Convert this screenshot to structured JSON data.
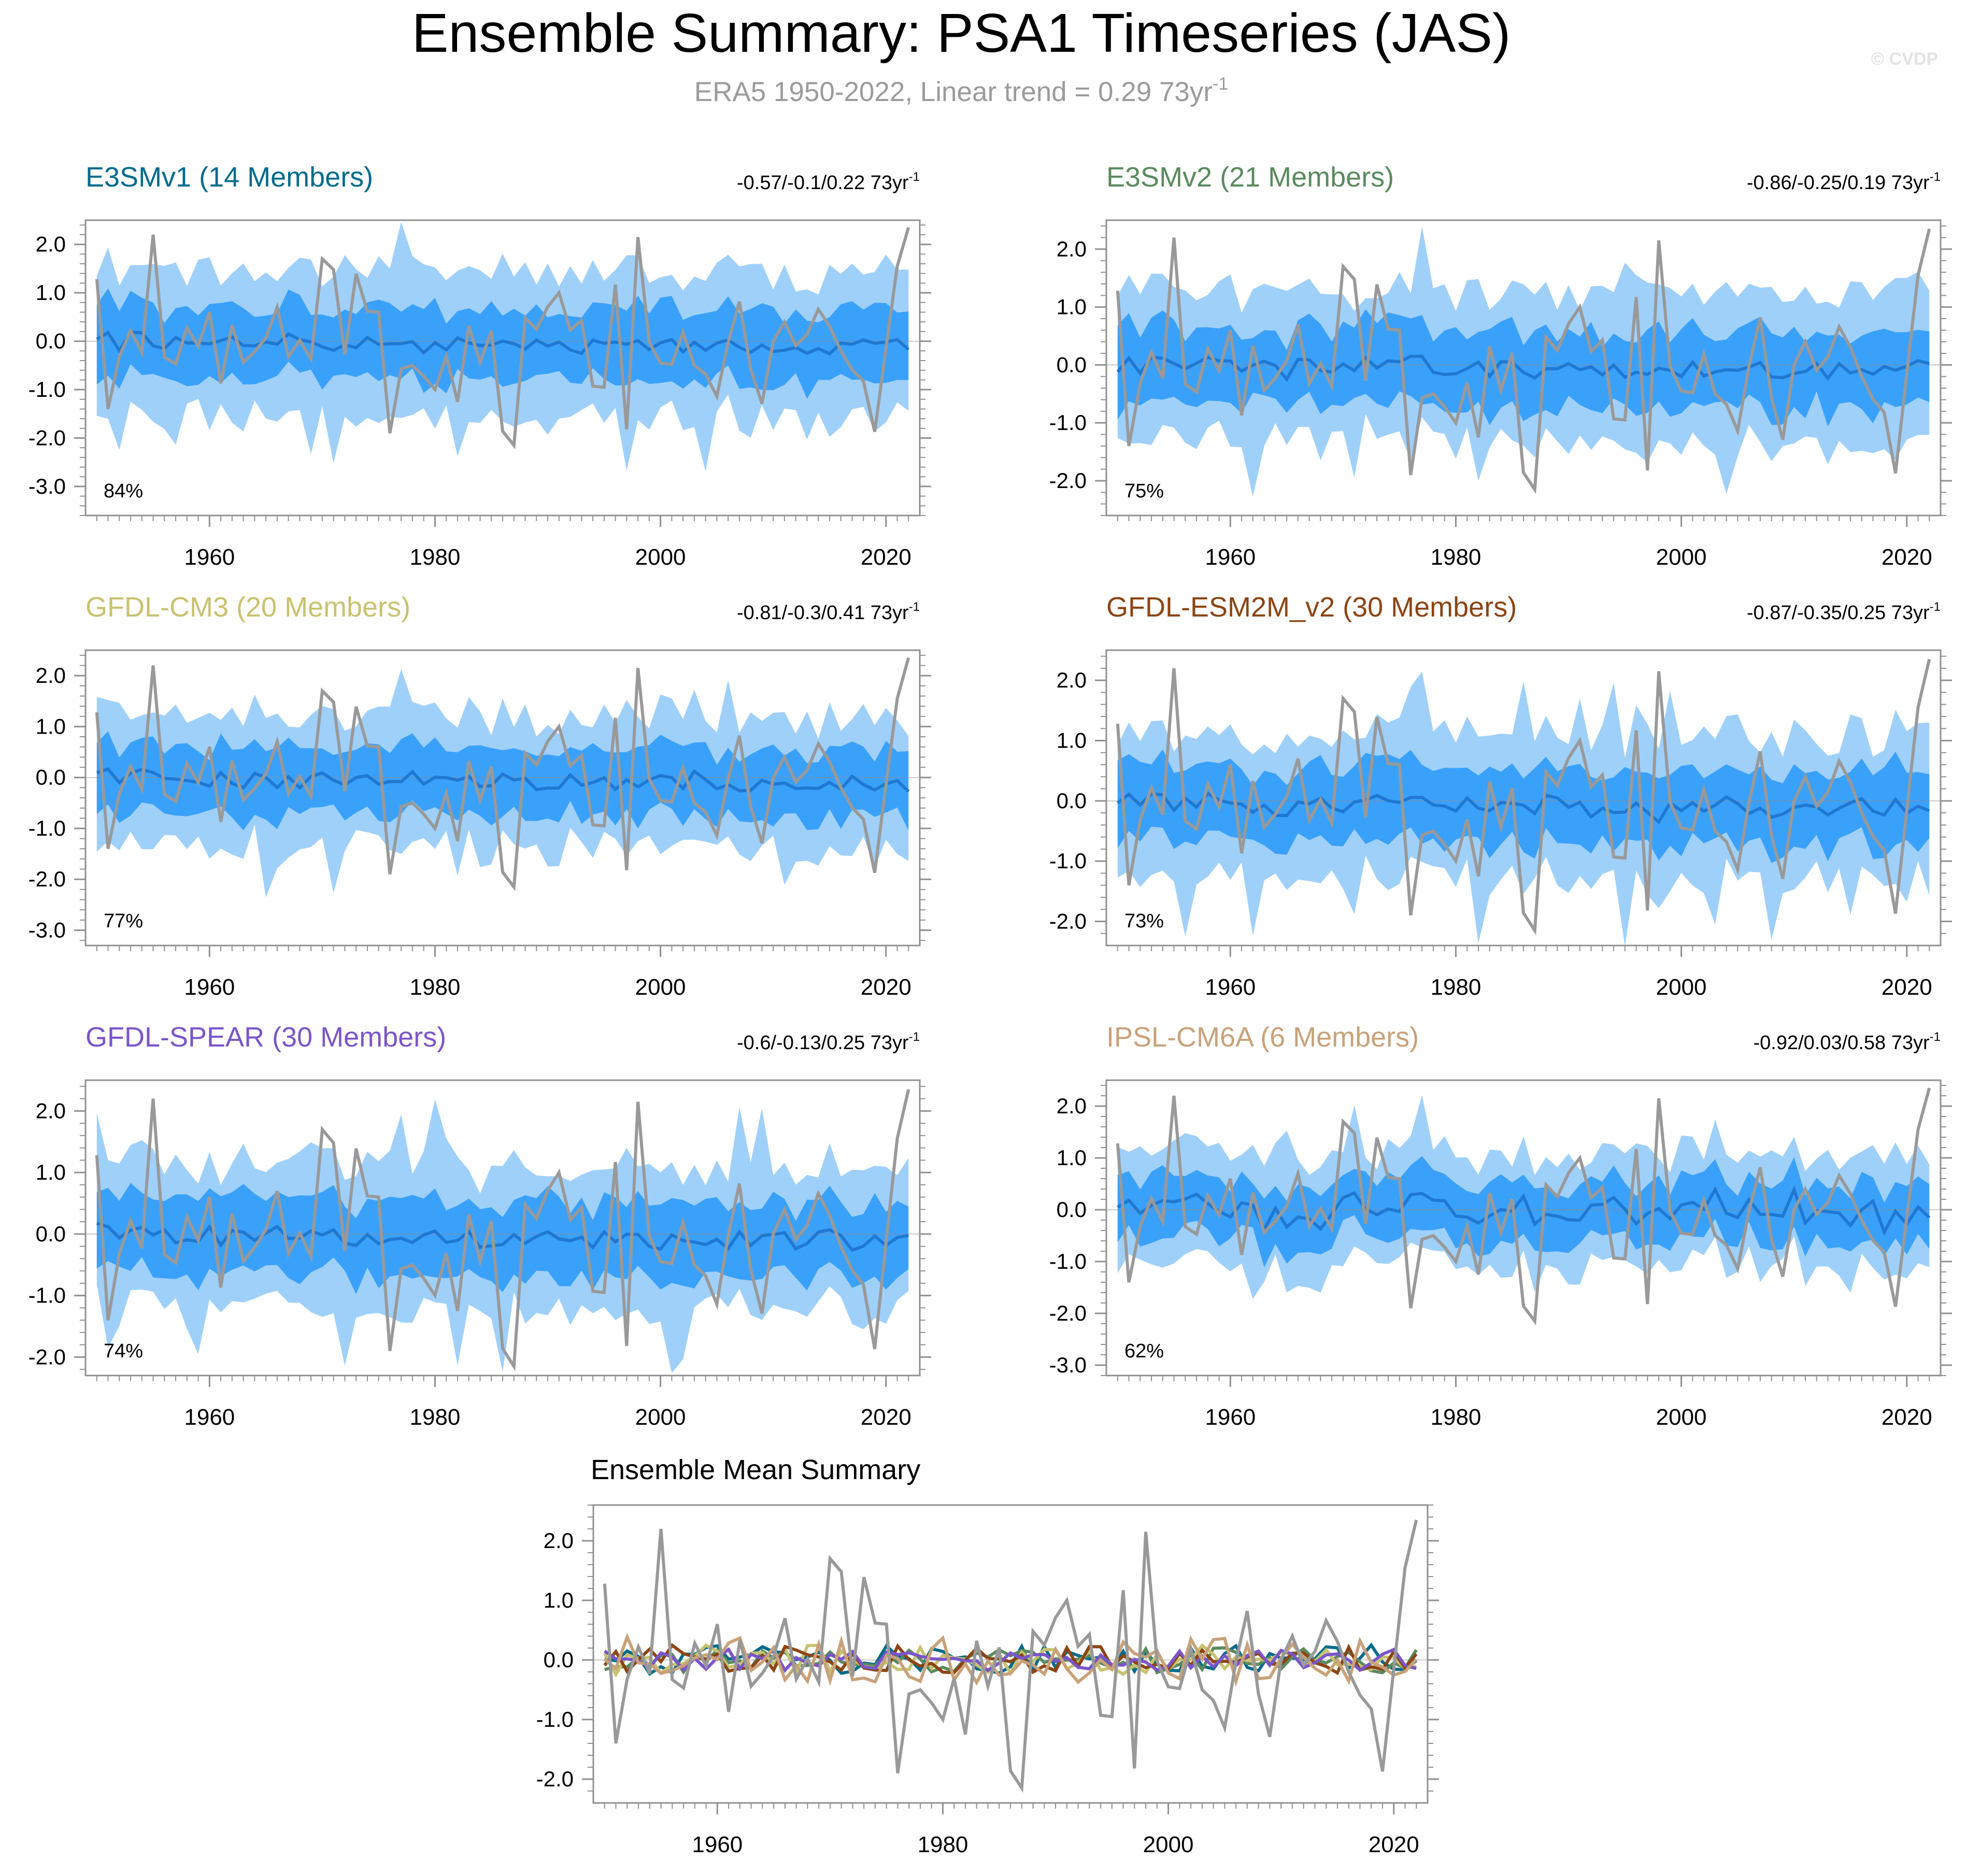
{
  "header": {
    "title": "Ensemble Summary: PSA1 Timeseries (JAS)",
    "subtitle_main": "ERA5 1950-2022, Linear trend = 0.29 73yr",
    "subtitle_sup": "-1",
    "watermark": "© CVDP"
  },
  "colors": {
    "outer_band": "#9fd0fa",
    "inner_band": "#3aa1fb",
    "ensemble_mean": "#1f78d1",
    "observed": "#999999",
    "axes": "#909090",
    "subtitle": "#9b9b9b"
  },
  "chart_data": [
    {
      "type": "area",
      "title": "E3SMv1 (14 Members)",
      "title_color": "#006b8a",
      "trend_text": "-0.57/-0.1/0.22 73yr",
      "trend_sup": "-1",
      "percent_label": "84%",
      "ylim": [
        -3.6,
        2.5
      ],
      "yticks": [
        -3.0,
        -2.0,
        -1.0,
        0.0,
        1.0,
        2.0
      ],
      "ytick_labels": [
        "-3.0",
        "-2.0",
        "-1.0",
        "0.0",
        "1.0",
        "2.0"
      ],
      "xlim": [
        1949,
        2023
      ],
      "xticks": [
        1960,
        1980,
        2000,
        2020
      ],
      "ens_seed": 1,
      "ens_trend": -0.2,
      "mean_amp": 0.25,
      "inner_amp": 0.95,
      "outer_amp": 1.85
    },
    {
      "type": "area",
      "title": "E3SMv2 (21 Members)",
      "title_color": "#5a8a5e",
      "trend_text": "-0.86/-0.25/0.19 73yr",
      "trend_sup": "-1",
      "percent_label": "75%",
      "ylim": [
        -2.6,
        2.5
      ],
      "yticks": [
        -2.0,
        -1.0,
        0.0,
        1.0,
        2.0
      ],
      "ytick_labels": [
        "-2.0",
        "-1.0",
        "0.0",
        "1.0",
        "2.0"
      ],
      "xlim": [
        1949,
        2023
      ],
      "xticks": [
        1960,
        1980,
        2000,
        2020
      ],
      "ens_seed": 2,
      "ens_trend": -0.15,
      "mean_amp": 0.25,
      "inner_amp": 0.85,
      "outer_amp": 1.6
    },
    {
      "type": "area",
      "title": "GFDL-CM3 (20 Members)",
      "title_color": "#c8c26f",
      "trend_text": "-0.81/-0.3/0.41 73yr",
      "trend_sup": "-1",
      "percent_label": "77%",
      "ylim": [
        -3.3,
        2.5
      ],
      "yticks": [
        -3.0,
        -2.0,
        -1.0,
        0.0,
        1.0,
        2.0
      ],
      "ytick_labels": [
        "-3.0",
        "-2.0",
        "-1.0",
        "0.0",
        "1.0",
        "2.0"
      ],
      "xlim": [
        1949,
        2023
      ],
      "xticks": [
        1960,
        1980,
        2000,
        2020
      ],
      "ens_seed": 3,
      "ens_trend": -0.25,
      "mean_amp": 0.25,
      "inner_amp": 0.85,
      "outer_amp": 1.6
    },
    {
      "type": "area",
      "title": "GFDL-ESM2M_v2 (30 Members)",
      "title_color": "#8b4513",
      "trend_text": "-0.87/-0.35/0.25 73yr",
      "trend_sup": "-1",
      "percent_label": "73%",
      "ylim": [
        -2.4,
        2.5
      ],
      "yticks": [
        -2.0,
        -1.0,
        0.0,
        1.0,
        2.0
      ],
      "ytick_labels": [
        "-2.0",
        "-1.0",
        "0.0",
        "1.0",
        "2.0"
      ],
      "xlim": [
        1949,
        2023
      ],
      "xticks": [
        1960,
        1980,
        2000,
        2020
      ],
      "ens_seed": 4,
      "ens_trend": -0.3,
      "mean_amp": 0.25,
      "inner_amp": 0.8,
      "outer_amp": 1.5
    },
    {
      "type": "area",
      "title": "GFDL-SPEAR (30 Members)",
      "title_color": "#7b55c9",
      "trend_text": "-0.6/-0.13/0.25 73yr",
      "trend_sup": "-1",
      "percent_label": "74%",
      "ylim": [
        -2.3,
        2.5
      ],
      "yticks": [
        -2.0,
        -1.0,
        0.0,
        1.0,
        2.0
      ],
      "ytick_labels": [
        "-2.0",
        "-1.0",
        "0.0",
        "1.0",
        "2.0"
      ],
      "xlim": [
        1949,
        2023
      ],
      "xticks": [
        1960,
        1980,
        2000,
        2020
      ],
      "ens_seed": 5,
      "ens_trend": -0.2,
      "mean_amp": 0.2,
      "inner_amp": 0.8,
      "outer_amp": 1.45
    },
    {
      "type": "area",
      "title": "IPSL-CM6A (6 Members)",
      "title_color": "#c8a27a",
      "trend_text": "-0.92/0.03/0.58 73yr",
      "trend_sup": "-1",
      "percent_label": "62%",
      "ylim": [
        -3.2,
        2.5
      ],
      "yticks": [
        -3.0,
        -2.0,
        -1.0,
        0.0,
        1.0,
        2.0
      ],
      "ytick_labels": [
        "-3.0",
        "-2.0",
        "-1.0",
        "0.0",
        "1.0",
        "2.0"
      ],
      "xlim": [
        1949,
        2023
      ],
      "xticks": [
        1960,
        1980,
        2000,
        2020
      ],
      "ens_seed": 6,
      "ens_trend": 0.0,
      "mean_amp": 0.45,
      "inner_amp": 0.75,
      "outer_amp": 1.35
    },
    {
      "type": "line",
      "title": "Ensemble Mean Summary",
      "ylim": [
        -2.4,
        2.6
      ],
      "yticks": [
        -2.0,
        -1.0,
        0.0,
        1.0,
        2.0
      ],
      "ytick_labels": [
        "-2.0",
        "-1.0",
        "0.0",
        "1.0",
        "2.0"
      ],
      "xlim": [
        1949,
        2023
      ],
      "xticks": [
        1960,
        1980,
        2000,
        2020
      ],
      "series": [
        {
          "name": "E3SMv1",
          "color": "#006b8a",
          "seed": 11,
          "amp": 0.25
        },
        {
          "name": "E3SMv2",
          "color": "#5a8a5e",
          "seed": 12,
          "amp": 0.22
        },
        {
          "name": "GFDL-CM3",
          "color": "#c8c26f",
          "seed": 13,
          "amp": 0.25
        },
        {
          "name": "GFDL-ESM2M_v2",
          "color": "#8b4513",
          "seed": 14,
          "amp": 0.25
        },
        {
          "name": "GFDL-SPEAR",
          "color": "#7b55c9",
          "seed": 15,
          "amp": 0.18
        },
        {
          "name": "IPSL-CM6A",
          "color": "#c8a27a",
          "seed": 16,
          "amp": 0.4
        }
      ]
    }
  ],
  "observed": {
    "name": "ERA5",
    "years_start": 1950,
    "values": [
      1.28,
      -1.4,
      -0.32,
      0.22,
      -0.23,
      2.2,
      -0.33,
      -0.47,
      0.28,
      -0.1,
      0.6,
      -0.87,
      0.33,
      -0.44,
      -0.22,
      0.07,
      0.7,
      -0.32,
      0.02,
      -0.37,
      1.7,
      1.48,
      -0.27,
      1.39,
      0.62,
      0.6,
      -1.9,
      -0.57,
      -0.5,
      -0.72,
      -1.0,
      -0.31,
      -1.25,
      0.32,
      -0.44,
      0.21,
      -1.86,
      -2.15,
      0.48,
      0.25,
      0.71,
      1.0,
      0.23,
      0.43,
      -0.93,
      -0.95,
      1.17,
      -1.82,
      2.15,
      -0.02,
      -0.45,
      -0.48,
      0.19,
      -0.5,
      -0.68,
      -1.14,
      -0.03,
      0.82,
      -0.57,
      -1.29,
      0.0,
      0.4,
      -0.09,
      0.14,
      0.66,
      0.31,
      -0.2,
      -0.59,
      -0.82,
      -1.87,
      -0.15,
      1.55,
      2.35
    ]
  }
}
